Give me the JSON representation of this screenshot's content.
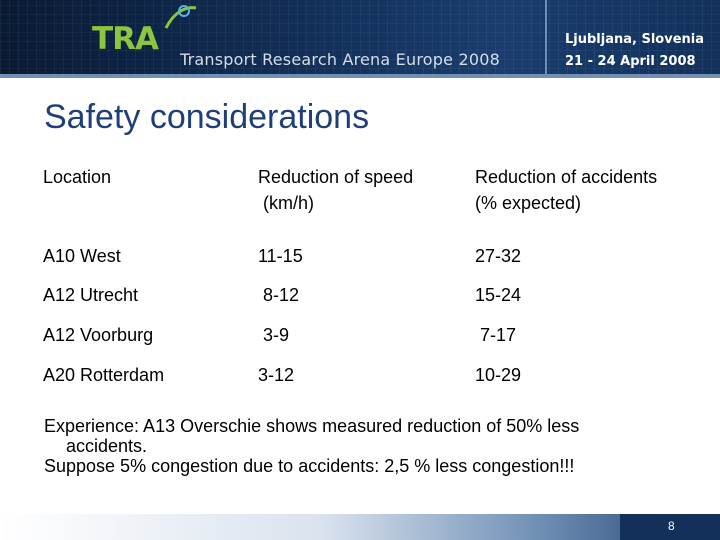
{
  "header": {
    "logo_text": "TRA",
    "event_name": "Transport Research Arena Europe 2008",
    "location": "Ljubljana, Slovenia",
    "dates": "21 - 24 April 2008",
    "colors": {
      "banner": "#12305a",
      "logo": "#8cc63f"
    }
  },
  "slide": {
    "title": "Safety considerations",
    "title_color": "#1f3f7a",
    "table": {
      "headers": [
        [
          "Location"
        ],
        [
          "Reduction of speed",
          " (km/h)"
        ],
        [
          "Reduction of accidents",
          "(% expected)"
        ]
      ],
      "rows": [
        [
          "A10 West",
          "11-15",
          "27-32"
        ],
        [
          "A12 Utrecht",
          " 8-12",
          "15-24"
        ],
        [
          "A12 Voorburg",
          " 3-9",
          " 7-17"
        ],
        [
          "A20 Rotterdam",
          "3-12",
          "10-29"
        ]
      ]
    },
    "notes": [
      "Experience: A13 Overschie shows measured reduction of 50% less",
      "accidents.",
      "Suppose 5% congestion due to accidents: 2,5 % less congestion!!!"
    ]
  },
  "footer": {
    "page_number": "8"
  }
}
